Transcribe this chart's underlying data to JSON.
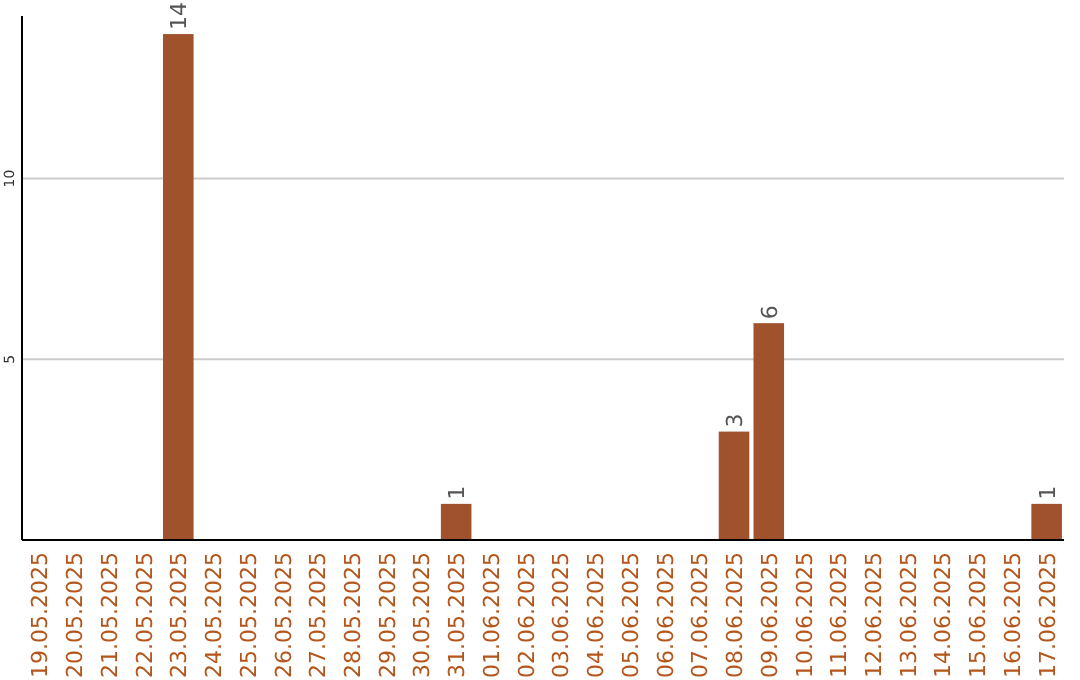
{
  "chart_data": {
    "type": "bar",
    "categories": [
      "19.05.2025",
      "20.05.2025",
      "21.05.2025",
      "22.05.2025",
      "23.05.2025",
      "24.05.2025",
      "25.05.2025",
      "26.05.2025",
      "27.05.2025",
      "28.05.2025",
      "29.05.2025",
      "30.05.2025",
      "31.05.2025",
      "01.06.2025",
      "02.06.2025",
      "03.06.2025",
      "04.06.2025",
      "05.06.2025",
      "06.06.2025",
      "07.06.2025",
      "08.06.2025",
      "09.06.2025",
      "10.06.2025",
      "11.06.2025",
      "12.06.2025",
      "13.06.2025",
      "14.06.2025",
      "15.06.2025",
      "16.06.2025",
      "17.06.2025"
    ],
    "values": [
      0,
      0,
      0,
      0,
      14,
      0,
      0,
      0,
      0,
      0,
      0,
      0,
      1,
      0,
      0,
      0,
      0,
      0,
      0,
      0,
      3,
      6,
      0,
      0,
      0,
      0,
      0,
      0,
      0,
      1
    ],
    "value_labels": [
      null,
      null,
      null,
      null,
      "14",
      null,
      null,
      null,
      null,
      null,
      null,
      null,
      "1",
      null,
      null,
      null,
      null,
      null,
      null,
      null,
      "3",
      "6",
      null,
      null,
      null,
      null,
      null,
      null,
      null,
      "1"
    ],
    "color": "#a0522d",
    "ylim": [
      0,
      14.5
    ],
    "yticks": [
      5,
      10
    ],
    "grid": "y"
  }
}
